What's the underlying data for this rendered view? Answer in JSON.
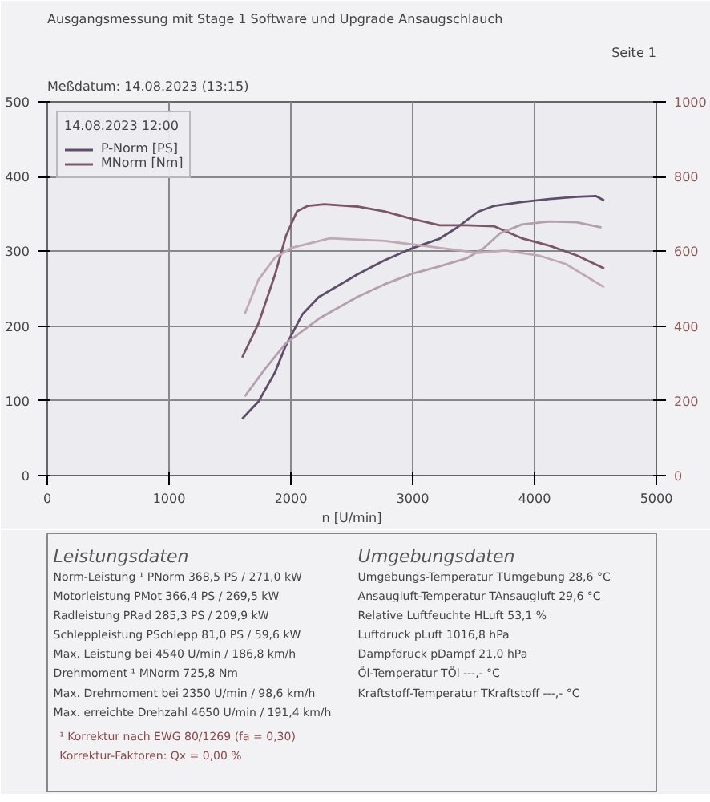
{
  "chart_data": {
    "type": "line",
    "title": "Ausgangsmessung mit Stage 1 Software und Upgrade Ansaugschlauch",
    "subtitle": "Meßdatum: 14.08.2023 (13:15)",
    "xlabel": "n [U/min]",
    "legend_title": "14.08.2023 12:00",
    "xlim": [
      0,
      5000
    ],
    "xticks": [
      0,
      1000,
      2000,
      3000,
      4000,
      5000
    ],
    "ylim": [
      0,
      500
    ],
    "yticks": [
      0,
      100,
      200,
      300,
      400,
      500
    ],
    "y2lim": [
      0,
      1000
    ],
    "y2ticks": [
      0,
      200,
      400,
      600,
      800,
      1000
    ],
    "grid": true,
    "legend": "top left",
    "marker": "none",
    "line_style": "solid",
    "series": [
      {
        "name": "P-Norm [PS]",
        "color": "#5e4e6a",
        "x": [
          1600,
          1734,
          1869,
          1959,
          2095,
          2230,
          2545,
          2770,
          2995,
          3221,
          3356,
          3536,
          3671,
          3896,
          4122,
          4347,
          4505,
          4572
        ],
        "values": [
          76,
          99,
          138,
          174,
          216,
          239,
          269,
          288,
          304,
          317,
          331,
          353,
          361,
          366,
          370,
          373,
          374,
          368
        ]
      },
      {
        "name": "MNorm [Nm]",
        "color": "#7a5666",
        "axis": "y2",
        "x": [
          1600,
          1734,
          1869,
          1959,
          2050,
          2140,
          2275,
          2545,
          2770,
          2995,
          3221,
          3446,
          3671,
          3896,
          4122,
          4347,
          4572
        ],
        "values": [
          316,
          407,
          537,
          641,
          707,
          722,
          726,
          720,
          707,
          687,
          670,
          670,
          667,
          635,
          615,
          589,
          554
        ]
      },
      {
        "color": "#b49fb0",
        "x": [
          1622,
          1779,
          1959,
          2230,
          2545,
          2770,
          2995,
          3221,
          3446,
          3581,
          3716,
          3896,
          4122,
          4347,
          4550
        ],
        "values": [
          106,
          141,
          177,
          210,
          239,
          256,
          270,
          280,
          291,
          304,
          324,
          336,
          340,
          339,
          332
        ]
      },
      {
        "color": "#c0a8b4",
        "axis": "y2",
        "x": [
          1622,
          1734,
          1869,
          2005,
          2320,
          2770,
          3221,
          3536,
          3761,
          4032,
          4257,
          4572
        ],
        "values": [
          433,
          524,
          583,
          609,
          635,
          628,
          609,
          596,
          602,
          589,
          566,
          504
        ]
      }
    ],
    "annotations": [
      "Seite 1",
      "Leistungsdaten",
      "Norm-Leistung ¹   PNorm   368,5 PS / 271,0 kW",
      "Motorleistung   PMot   366,4 PS / 269,5 kW",
      "Radleistung   PRad   285,3 PS / 209,9 kW",
      "Schleppleistung   PSchlepp   81,0 PS / 59,6 kW",
      "Max. Leistung bei   4540 U/min / 186,8 km/h",
      "Drehmoment ¹   MNorm   725,8 Nm",
      "Max. Drehmoment bei   2350 U/min / 98,6 km/h",
      "Max. erreichte Drehzahl   4650 U/min / 191,4 km/h",
      "Umgebungsdaten",
      "Umgebungs-Temperatur   TUmgebung   28,6 °C",
      "Ansaugluft-Temperatur   TAnsaugluft   29,6 °C",
      "Relative Luftfeuchte   HLuft   53,1 %",
      "Luftdruck   pLuft   1016,8 hPa",
      "Dampfdruck   pDampf   21,0 hPa",
      "Öl-Temperatur   TÖl   ---,- °C",
      "Kraftstoff-Temperatur   TKraftstoff   ---,- °C",
      "¹ Korrektur nach EWG 80/1269 (fa = 0,30)",
      "Korrektur-Faktoren: Qx = 0,00 %"
    ]
  }
}
